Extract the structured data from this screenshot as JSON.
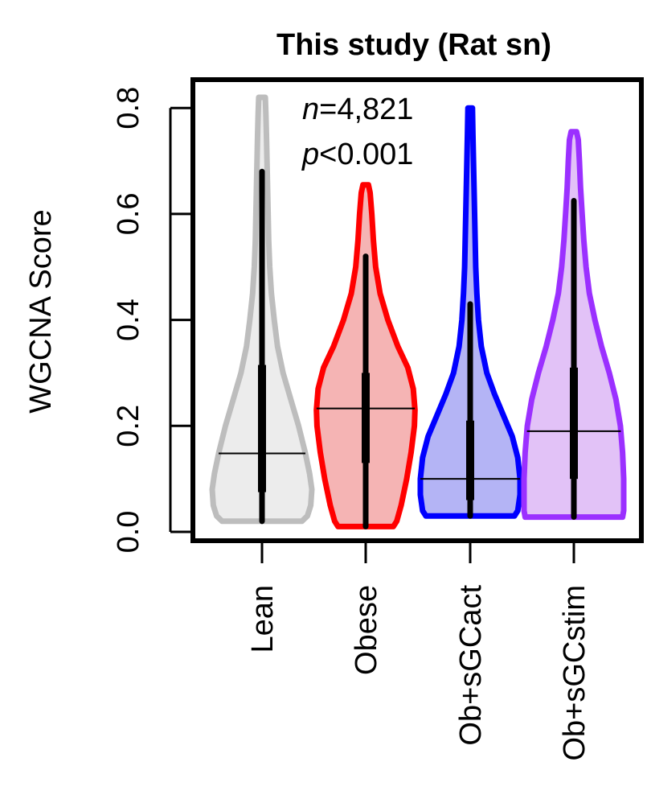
{
  "chart_data": {
    "type": "violin",
    "title": "This study (Rat sn)",
    "ylabel": "WGCNA Score",
    "xlabel": "",
    "ylim": [
      0,
      0.8
    ],
    "yticks": [
      "0.0",
      "0.2",
      "0.4",
      "0.6",
      "0.8"
    ],
    "ytick_values": [
      0,
      0.2,
      0.4,
      0.6,
      0.8
    ],
    "categories": [
      "Lean",
      "Obese",
      "Ob+sGCact",
      "Ob+sGCstim"
    ],
    "annotation": {
      "n_prefix": "n",
      "n_value": "=4,821",
      "p_prefix": "p",
      "p_value": "<0.001"
    },
    "series": [
      {
        "name": "Lean",
        "color": "#bdbdbd",
        "fill": "#ececec",
        "min": 0.02,
        "max": 0.82,
        "median": 0.148,
        "q1": 0.075,
        "q3": 0.315,
        "whisker_high": 0.68,
        "profile": [
          [
            0.02,
            0.36
          ],
          [
            0.03,
            0.41
          ],
          [
            0.05,
            0.44
          ],
          [
            0.08,
            0.45
          ],
          [
            0.11,
            0.43
          ],
          [
            0.15,
            0.39
          ],
          [
            0.2,
            0.33
          ],
          [
            0.25,
            0.26
          ],
          [
            0.3,
            0.19
          ],
          [
            0.35,
            0.14
          ],
          [
            0.4,
            0.11
          ],
          [
            0.45,
            0.085
          ],
          [
            0.5,
            0.07
          ],
          [
            0.55,
            0.06
          ],
          [
            0.6,
            0.055
          ],
          [
            0.65,
            0.05
          ],
          [
            0.7,
            0.045
          ],
          [
            0.75,
            0.04
          ],
          [
            0.79,
            0.035
          ],
          [
            0.82,
            0.03
          ]
        ]
      },
      {
        "name": "Obese",
        "color": "#ff0000",
        "fill": "#f5b4b4",
        "min": 0.01,
        "max": 0.655,
        "median": 0.233,
        "q1": 0.13,
        "q3": 0.3,
        "whisker_high": 0.52,
        "profile": [
          [
            0.01,
            0.25
          ],
          [
            0.02,
            0.28
          ],
          [
            0.05,
            0.32
          ],
          [
            0.1,
            0.37
          ],
          [
            0.15,
            0.41
          ],
          [
            0.2,
            0.44
          ],
          [
            0.23,
            0.445
          ],
          [
            0.27,
            0.43
          ],
          [
            0.31,
            0.38
          ],
          [
            0.35,
            0.29
          ],
          [
            0.4,
            0.2
          ],
          [
            0.45,
            0.13
          ],
          [
            0.5,
            0.09
          ],
          [
            0.55,
            0.07
          ],
          [
            0.6,
            0.055
          ],
          [
            0.64,
            0.04
          ],
          [
            0.655,
            0.025
          ]
        ]
      },
      {
        "name": "Ob+sGCact",
        "color": "#0000ff",
        "fill": "#b4b4f5",
        "min": 0.03,
        "max": 0.8,
        "median": 0.1,
        "q1": 0.06,
        "q3": 0.21,
        "whisker_high": 0.43,
        "profile": [
          [
            0.03,
            0.4
          ],
          [
            0.04,
            0.43
          ],
          [
            0.07,
            0.45
          ],
          [
            0.1,
            0.45
          ],
          [
            0.14,
            0.43
          ],
          [
            0.18,
            0.38
          ],
          [
            0.22,
            0.3
          ],
          [
            0.26,
            0.22
          ],
          [
            0.3,
            0.15
          ],
          [
            0.35,
            0.1
          ],
          [
            0.4,
            0.075
          ],
          [
            0.45,
            0.06
          ],
          [
            0.5,
            0.05
          ],
          [
            0.55,
            0.045
          ],
          [
            0.6,
            0.04
          ],
          [
            0.65,
            0.035
          ],
          [
            0.7,
            0.03
          ],
          [
            0.75,
            0.025
          ],
          [
            0.8,
            0.02
          ]
        ]
      },
      {
        "name": "Ob+sGCstim",
        "color": "#9b30ff",
        "fill": "#e2c2f7",
        "min": 0.028,
        "max": 0.755,
        "median": 0.19,
        "q1": 0.1,
        "q3": 0.31,
        "whisker_high": 0.625,
        "profile": [
          [
            0.028,
            0.44
          ],
          [
            0.04,
            0.45
          ],
          [
            0.07,
            0.45
          ],
          [
            0.1,
            0.45
          ],
          [
            0.15,
            0.44
          ],
          [
            0.2,
            0.42
          ],
          [
            0.25,
            0.38
          ],
          [
            0.3,
            0.32
          ],
          [
            0.35,
            0.25
          ],
          [
            0.4,
            0.19
          ],
          [
            0.45,
            0.14
          ],
          [
            0.5,
            0.11
          ],
          [
            0.55,
            0.09
          ],
          [
            0.6,
            0.075
          ],
          [
            0.65,
            0.06
          ],
          [
            0.7,
            0.05
          ],
          [
            0.74,
            0.04
          ],
          [
            0.755,
            0.025
          ]
        ]
      }
    ]
  }
}
